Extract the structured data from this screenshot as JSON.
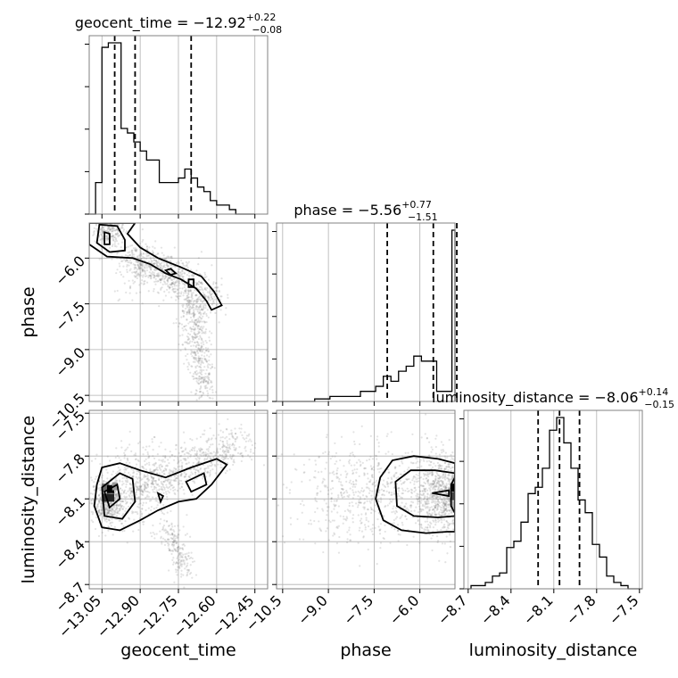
{
  "chart_data": {
    "type": "corner",
    "parameters": [
      "geocent_time",
      "phase",
      "luminosity_distance"
    ],
    "colors": {
      "line": "#000000",
      "grid": "#b0b0b0",
      "frame": "#808080",
      "point": "#7f7f7f"
    },
    "grid": true,
    "titles": [
      {
        "prefix": "geocent_time = −12.92",
        "upper": "+0.22",
        "lower": "−0.08"
      },
      {
        "prefix": "phase = −5.56",
        "upper": "+0.77",
        "lower": "−1.51"
      },
      {
        "prefix": "luminosity_distance = −8.06",
        "upper": "+0.14",
        "lower": "−0.15"
      }
    ],
    "axes": {
      "geocent_time": {
        "range": [
          -13.1,
          -12.4
        ],
        "ticks": [
          -13.05,
          -12.9,
          -12.75,
          -12.6,
          -12.45
        ],
        "tick_labels": [
          "−13.05",
          "−12.90",
          "−12.75",
          "−12.60",
          "−12.45"
        ]
      },
      "phase": {
        "range": [
          -10.7,
          -4.85
        ],
        "ticks": [
          -10.5,
          -9.0,
          -7.5,
          -6.0
        ],
        "tick_labels": [
          "−10.5",
          "−9.0",
          "−7.5",
          "−6.0"
        ]
      },
      "luminosity_distance": {
        "range": [
          -8.73,
          -7.48
        ],
        "ticks": [
          -8.7,
          -8.4,
          -8.1,
          -7.8,
          -7.5
        ],
        "tick_labels": [
          "−8.7",
          "−8.4",
          "−8.1",
          "−7.8",
          "−7.5"
        ]
      }
    },
    "histograms": [
      {
        "param": "geocent_time",
        "bin_edges": [
          -13.1,
          -13.075,
          -13.05,
          -13.025,
          -13.0,
          -12.975,
          -12.95,
          -12.925,
          -12.9,
          -12.875,
          -12.85,
          -12.825,
          -12.8,
          -12.775,
          -12.75,
          -12.725,
          -12.7,
          -12.675,
          -12.65,
          -12.625,
          -12.6,
          -12.575,
          -12.55,
          -12.525,
          -12.5,
          -12.475,
          -12.45
        ],
        "counts": [
          0,
          7,
          37,
          38,
          38,
          19,
          18,
          16,
          14,
          12,
          12,
          7,
          7,
          7,
          8,
          10,
          8,
          6,
          5,
          3,
          2,
          2,
          1,
          0,
          0,
          0
        ],
        "quantiles": [
          -13.0,
          -12.92,
          -12.7
        ]
      },
      {
        "param": "phase",
        "bin_edges": [
          -10.7,
          -10.45,
          -10.2,
          -9.95,
          -9.7,
          -9.45,
          -9.2,
          -8.95,
          -8.7,
          -8.45,
          -8.2,
          -7.95,
          -7.7,
          -7.45,
          -7.2,
          -6.95,
          -6.7,
          -6.45,
          -6.2,
          -5.95,
          -5.7,
          -5.45,
          -5.2,
          -4.95,
          -4.85
        ],
        "counts": [
          0,
          0,
          0,
          0,
          0,
          0.5,
          0.5,
          1,
          1,
          1,
          1,
          2,
          2,
          3,
          5,
          4,
          6,
          7,
          9,
          8,
          8,
          2,
          2,
          34
        ],
        "quantiles": [
          -7.07,
          -5.56,
          -4.79
        ]
      },
      {
        "param": "luminosity_distance",
        "bin_edges": [
          -8.73,
          -8.68,
          -8.63,
          -8.58,
          -8.53,
          -8.48,
          -8.43,
          -8.38,
          -8.33,
          -8.28,
          -8.23,
          -8.18,
          -8.13,
          -8.08,
          -8.03,
          -7.98,
          -7.93,
          -7.88,
          -7.83,
          -7.78,
          -7.73,
          -7.68,
          -7.63,
          -7.58,
          -7.53,
          -7.48
        ],
        "counts": [
          0,
          1,
          1,
          2,
          4,
          5,
          13,
          15,
          21,
          30,
          32,
          38,
          50,
          54,
          46,
          38,
          28,
          24,
          14,
          10,
          4,
          2,
          1,
          0,
          0
        ],
        "quantiles": [
          -8.21,
          -8.06,
          -7.92
        ]
      }
    ]
  }
}
